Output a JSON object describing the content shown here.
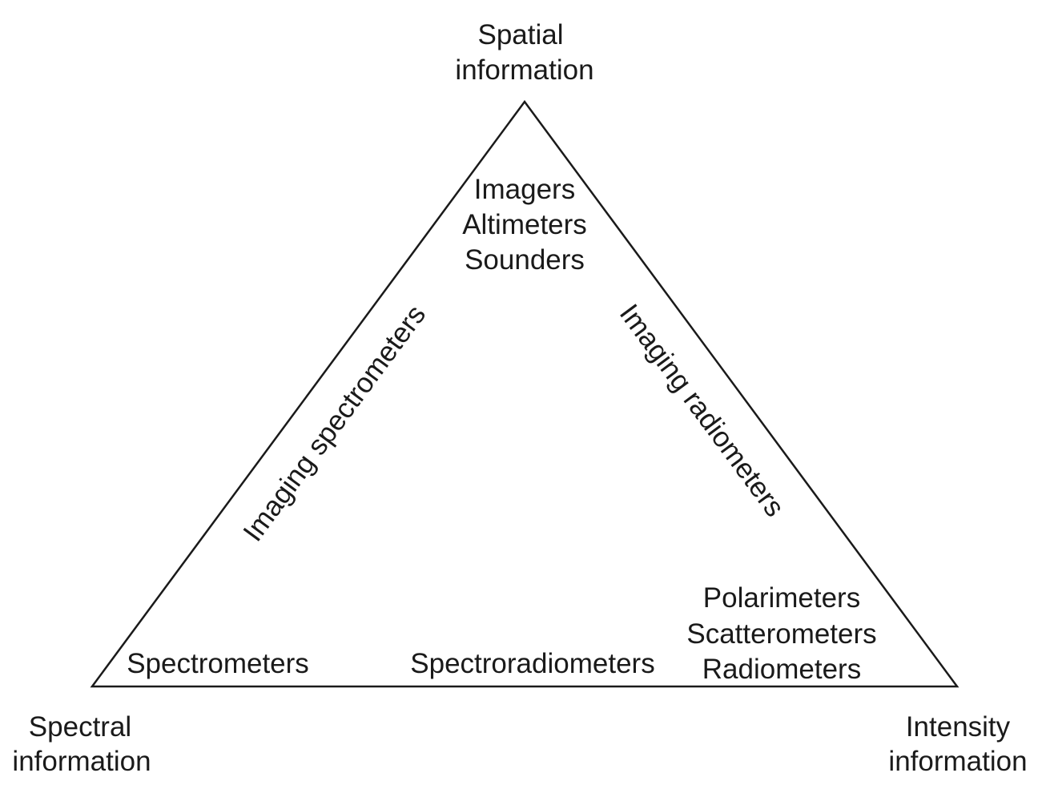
{
  "vertices": {
    "top": [
      "Spatial",
      "information"
    ],
    "bottom_left": [
      "Spectral",
      "information"
    ],
    "bottom_right": [
      "Intensity",
      "information"
    ]
  },
  "inside": {
    "top": [
      "Imagers",
      "Altimeters",
      "Sounders"
    ],
    "bottom_left": [
      "Spectrometers"
    ],
    "bottom_center": [
      "Spectroradiometers"
    ],
    "bottom_right": [
      "Polarimeters",
      "Scatterometers",
      "Radiometers"
    ]
  },
  "edges": {
    "left": "Imaging spectrometers",
    "right": "Imaging radiometers"
  },
  "colors": {
    "line": "#1a1a1a",
    "text": "#1a1a1a",
    "background": "#ffffff"
  }
}
